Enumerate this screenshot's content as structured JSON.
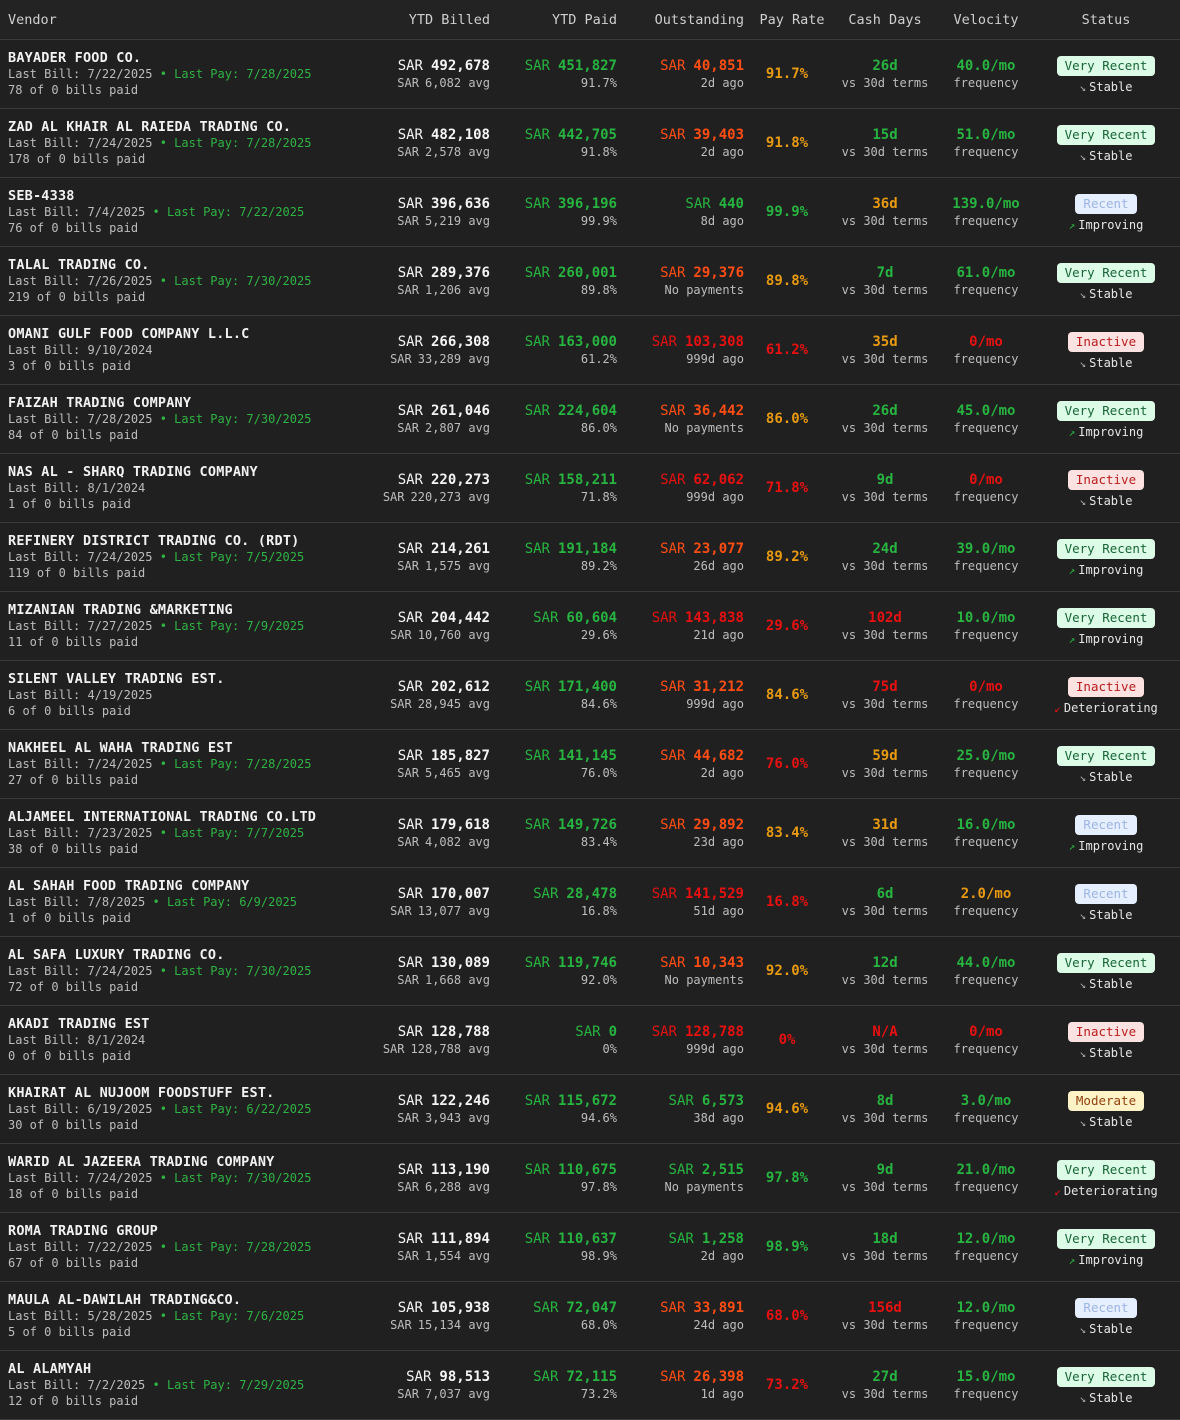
{
  "colors": {
    "green": "#27b440",
    "red": "#e81010",
    "orange": "#ff4d14",
    "amber": "#e89a10",
    "badge_very_recent_bg": "#dcfce7",
    "badge_very_recent_fg": "#166534",
    "badge_recent_bg": "#e6efff",
    "badge_recent_fg": "#9db5e6",
    "badge_inactive_bg": "#fde2e2",
    "badge_inactive_fg": "#b91c1c",
    "badge_moderate_bg": "#fef3c7",
    "badge_moderate_fg": "#92400e"
  },
  "headers": {
    "vendor": "Vendor",
    "ytd_billed": "YTD Billed",
    "ytd_paid": "YTD Paid",
    "outstanding": "Outstanding",
    "pay_rate": "Pay Rate",
    "cash_days": "Cash Days",
    "velocity": "Velocity",
    "status": "Status"
  },
  "rows": [
    {
      "name": "BAYADER FOOD CO.",
      "last_bill": "Last Bill: 7/22/2025",
      "last_pay": " • Last Pay: 7/28/2025",
      "bills": "78 of 0 bills paid",
      "billed": "492,678",
      "avg": "6,082 avg",
      "paid": "451,827",
      "paid_pct": "91.7%",
      "paid_color": "green",
      "out": "40,851",
      "out_color": "orange",
      "out_sub": "2d ago",
      "rate": "91.7%",
      "rate_color": "amber",
      "cash": "26d",
      "cash_color": "green",
      "cash_sub": "vs 30d terms",
      "vel": "40.0/mo",
      "vel_color": "green",
      "vel_sub": "frequency",
      "status": "Very Recent",
      "status_type": "very_recent",
      "trend": "Stable",
      "trend_icon": "↘"
    },
    {
      "name": "ZAD AL KHAIR AL RAIEDA TRADING CO.",
      "last_bill": "Last Bill: 7/24/2025",
      "last_pay": " • Last Pay: 7/28/2025",
      "bills": "178 of 0 bills paid",
      "billed": "482,108",
      "avg": "2,578 avg",
      "paid": "442,705",
      "paid_pct": "91.8%",
      "paid_color": "green",
      "out": "39,403",
      "out_color": "orange",
      "out_sub": "2d ago",
      "rate": "91.8%",
      "rate_color": "amber",
      "cash": "15d",
      "cash_color": "green",
      "cash_sub": "vs 30d terms",
      "vel": "51.0/mo",
      "vel_color": "green",
      "vel_sub": "frequency",
      "status": "Very Recent",
      "status_type": "very_recent",
      "trend": "Stable",
      "trend_icon": "↘"
    },
    {
      "name": "SEB-4338",
      "last_bill": "Last Bill: 7/4/2025",
      "last_pay": " • Last Pay: 7/22/2025",
      "bills": "76 of 0 bills paid",
      "billed": "396,636",
      "avg": "5,219 avg",
      "paid": "396,196",
      "paid_pct": "99.9%",
      "paid_color": "green",
      "out": "440",
      "out_color": "green",
      "out_sub": "8d ago",
      "rate": "99.9%",
      "rate_color": "green",
      "cash": "36d",
      "cash_color": "amber",
      "cash_sub": "vs 30d terms",
      "vel": "139.0/mo",
      "vel_color": "green",
      "vel_sub": "frequency",
      "status": "Recent",
      "status_type": "recent",
      "trend": "Improving",
      "trend_icon": "↗"
    },
    {
      "name": "TALAL TRADING CO.",
      "last_bill": "Last Bill: 7/26/2025",
      "last_pay": " • Last Pay: 7/30/2025",
      "bills": "219 of 0 bills paid",
      "billed": "289,376",
      "avg": "1,206 avg",
      "paid": "260,001",
      "paid_pct": "89.8%",
      "paid_color": "green",
      "out": "29,376",
      "out_color": "orange",
      "out_sub": "No payments",
      "rate": "89.8%",
      "rate_color": "amber",
      "cash": "7d",
      "cash_color": "green",
      "cash_sub": "vs 30d terms",
      "vel": "61.0/mo",
      "vel_color": "green",
      "vel_sub": "frequency",
      "status": "Very Recent",
      "status_type": "very_recent",
      "trend": "Stable",
      "trend_icon": "↘"
    },
    {
      "name": "OMANI GULF FOOD COMPANY L.L.C",
      "last_bill": "Last Bill: 9/10/2024",
      "last_pay": "",
      "bills": "3 of 0 bills paid",
      "billed": "266,308",
      "avg": "33,289 avg",
      "paid": "163,000",
      "paid_pct": "61.2%",
      "paid_color": "green",
      "out": "103,308",
      "out_color": "red",
      "out_sub": "999d ago",
      "rate": "61.2%",
      "rate_color": "red",
      "cash": "35d",
      "cash_color": "amber",
      "cash_sub": "vs 30d terms",
      "vel": "0/mo",
      "vel_color": "red",
      "vel_sub": "frequency",
      "status": "Inactive",
      "status_type": "inactive",
      "trend": "Stable",
      "trend_icon": "↘"
    },
    {
      "name": "FAIZAH TRADING COMPANY",
      "last_bill": "Last Bill: 7/28/2025",
      "last_pay": " • Last Pay: 7/30/2025",
      "bills": "84 of 0 bills paid",
      "billed": "261,046",
      "avg": "2,807 avg",
      "paid": "224,604",
      "paid_pct": "86.0%",
      "paid_color": "green",
      "out": "36,442",
      "out_color": "orange",
      "out_sub": "No payments",
      "rate": "86.0%",
      "rate_color": "amber",
      "cash": "26d",
      "cash_color": "green",
      "cash_sub": "vs 30d terms",
      "vel": "45.0/mo",
      "vel_color": "green",
      "vel_sub": "frequency",
      "status": "Very Recent",
      "status_type": "very_recent",
      "trend": "Improving",
      "trend_icon": "↗"
    },
    {
      "name": "NAS AL - SHARQ TRADING COMPANY",
      "last_bill": "Last Bill: 8/1/2024",
      "last_pay": "",
      "bills": "1 of 0 bills paid",
      "billed": "220,273",
      "avg": "220,273 avg",
      "paid": "158,211",
      "paid_pct": "71.8%",
      "paid_color": "green",
      "out": "62,062",
      "out_color": "red",
      "out_sub": "999d ago",
      "rate": "71.8%",
      "rate_color": "red",
      "cash": "9d",
      "cash_color": "green",
      "cash_sub": "vs 30d terms",
      "vel": "0/mo",
      "vel_color": "red",
      "vel_sub": "frequency",
      "status": "Inactive",
      "status_type": "inactive",
      "trend": "Stable",
      "trend_icon": "↘"
    },
    {
      "name": "REFINERY DISTRICT TRADING CO. (RDT)",
      "last_bill": "Last Bill: 7/24/2025",
      "last_pay": " • Last Pay: 7/5/2025",
      "bills": "119 of 0 bills paid",
      "billed": "214,261",
      "avg": "1,575 avg",
      "paid": "191,184",
      "paid_pct": "89.2%",
      "paid_color": "green",
      "out": "23,077",
      "out_color": "orange",
      "out_sub": "26d ago",
      "rate": "89.2%",
      "rate_color": "amber",
      "cash": "24d",
      "cash_color": "green",
      "cash_sub": "vs 30d terms",
      "vel": "39.0/mo",
      "vel_color": "green",
      "vel_sub": "frequency",
      "status": "Very Recent",
      "status_type": "very_recent",
      "trend": "Improving",
      "trend_icon": "↗"
    },
    {
      "name": "MIZANIAN TRADING &MARKETING",
      "last_bill": "Last Bill: 7/27/2025",
      "last_pay": " • Last Pay: 7/9/2025",
      "bills": "11 of 0 bills paid",
      "billed": "204,442",
      "avg": "10,760 avg",
      "paid": "60,604",
      "paid_pct": "29.6%",
      "paid_color": "green",
      "out": "143,838",
      "out_color": "red",
      "out_sub": "21d ago",
      "rate": "29.6%",
      "rate_color": "red",
      "cash": "102d",
      "cash_color": "red",
      "cash_sub": "vs 30d terms",
      "vel": "10.0/mo",
      "vel_color": "green",
      "vel_sub": "frequency",
      "status": "Very Recent",
      "status_type": "very_recent",
      "trend": "Improving",
      "trend_icon": "↗"
    },
    {
      "name": "SILENT VALLEY TRADING EST.",
      "last_bill": "Last Bill: 4/19/2025",
      "last_pay": "",
      "bills": "6 of 0 bills paid",
      "billed": "202,612",
      "avg": "28,945 avg",
      "paid": "171,400",
      "paid_pct": "84.6%",
      "paid_color": "green",
      "out": "31,212",
      "out_color": "orange",
      "out_sub": "999d ago",
      "rate": "84.6%",
      "rate_color": "amber",
      "cash": "75d",
      "cash_color": "red",
      "cash_sub": "vs 30d terms",
      "vel": "0/mo",
      "vel_color": "red",
      "vel_sub": "frequency",
      "status": "Inactive",
      "status_type": "inactive",
      "trend": "Deteriorating",
      "trend_icon": "↙"
    },
    {
      "name": "NAKHEEL AL WAHA TRADING EST",
      "last_bill": "Last Bill: 7/24/2025",
      "last_pay": " • Last Pay: 7/28/2025",
      "bills": "27 of 0 bills paid",
      "billed": "185,827",
      "avg": "5,465 avg",
      "paid": "141,145",
      "paid_pct": "76.0%",
      "paid_color": "green",
      "out": "44,682",
      "out_color": "orange",
      "out_sub": "2d ago",
      "rate": "76.0%",
      "rate_color": "red",
      "cash": "59d",
      "cash_color": "amber",
      "cash_sub": "vs 30d terms",
      "vel": "25.0/mo",
      "vel_color": "green",
      "vel_sub": "frequency",
      "status": "Very Recent",
      "status_type": "very_recent",
      "trend": "Stable",
      "trend_icon": "↘"
    },
    {
      "name": "ALJAMEEL INTERNATIONAL TRADING CO.LTD",
      "last_bill": "Last Bill: 7/23/2025",
      "last_pay": " • Last Pay: 7/7/2025",
      "bills": "38 of 0 bills paid",
      "billed": "179,618",
      "avg": "4,082 avg",
      "paid": "149,726",
      "paid_pct": "83.4%",
      "paid_color": "green",
      "out": "29,892",
      "out_color": "orange",
      "out_sub": "23d ago",
      "rate": "83.4%",
      "rate_color": "amber",
      "cash": "31d",
      "cash_color": "amber",
      "cash_sub": "vs 30d terms",
      "vel": "16.0/mo",
      "vel_color": "green",
      "vel_sub": "frequency",
      "status": "Recent",
      "status_type": "recent",
      "trend": "Improving",
      "trend_icon": "↗"
    },
    {
      "name": "AL SAHAH FOOD TRADING COMPANY",
      "last_bill": "Last Bill: 7/8/2025",
      "last_pay": " • Last Pay: 6/9/2025",
      "bills": "1 of 0 bills paid",
      "billed": "170,007",
      "avg": "13,077 avg",
      "paid": "28,478",
      "paid_pct": "16.8%",
      "paid_color": "green",
      "out": "141,529",
      "out_color": "red",
      "out_sub": "51d ago",
      "rate": "16.8%",
      "rate_color": "red",
      "cash": "6d",
      "cash_color": "green",
      "cash_sub": "vs 30d terms",
      "vel": "2.0/mo",
      "vel_color": "amber",
      "vel_sub": "frequency",
      "status": "Recent",
      "status_type": "recent",
      "trend": "Stable",
      "trend_icon": "↘"
    },
    {
      "name": "AL SAFA LUXURY TRADING CO.",
      "last_bill": "Last Bill: 7/24/2025",
      "last_pay": " • Last Pay: 7/30/2025",
      "bills": "72 of 0 bills paid",
      "billed": "130,089",
      "avg": "1,668 avg",
      "paid": "119,746",
      "paid_pct": "92.0%",
      "paid_color": "green",
      "out": "10,343",
      "out_color": "orange",
      "out_sub": "No payments",
      "rate": "92.0%",
      "rate_color": "amber",
      "cash": "12d",
      "cash_color": "green",
      "cash_sub": "vs 30d terms",
      "vel": "44.0/mo",
      "vel_color": "green",
      "vel_sub": "frequency",
      "status": "Very Recent",
      "status_type": "very_recent",
      "trend": "Stable",
      "trend_icon": "↘"
    },
    {
      "name": "AKADI TRADING EST",
      "last_bill": "Last Bill: 8/1/2024",
      "last_pay": "",
      "bills": "0 of 0 bills paid",
      "billed": "128,788",
      "avg": "128,788 avg",
      "paid": "0",
      "paid_pct": "0%",
      "paid_color": "green",
      "out": "128,788",
      "out_color": "red",
      "out_sub": "999d ago",
      "rate": "0%",
      "rate_color": "red",
      "cash": "N/A",
      "cash_color": "red",
      "cash_sub": "vs 30d terms",
      "vel": "0/mo",
      "vel_color": "red",
      "vel_sub": "frequency",
      "status": "Inactive",
      "status_type": "inactive",
      "trend": "Stable",
      "trend_icon": "↘"
    },
    {
      "name": "KHAIRAT AL NUJOOM FOODSTUFF EST.",
      "last_bill": "Last Bill: 6/19/2025",
      "last_pay": " • Last Pay: 6/22/2025",
      "bills": "30 of 0 bills paid",
      "billed": "122,246",
      "avg": "3,943 avg",
      "paid": "115,672",
      "paid_pct": "94.6%",
      "paid_color": "green",
      "out": "6,573",
      "out_color": "green",
      "out_sub": "38d ago",
      "rate": "94.6%",
      "rate_color": "amber",
      "cash": "8d",
      "cash_color": "green",
      "cash_sub": "vs 30d terms",
      "vel": "3.0/mo",
      "vel_color": "green",
      "vel_sub": "frequency",
      "status": "Moderate",
      "status_type": "moderate",
      "trend": "Stable",
      "trend_icon": "↘"
    },
    {
      "name": "WARID AL JAZEERA TRADING COMPANY",
      "last_bill": "Last Bill: 7/24/2025",
      "last_pay": " • Last Pay: 7/30/2025",
      "bills": "18 of 0 bills paid",
      "billed": "113,190",
      "avg": "6,288 avg",
      "paid": "110,675",
      "paid_pct": "97.8%",
      "paid_color": "green",
      "out": "2,515",
      "out_color": "green",
      "out_sub": "No payments",
      "rate": "97.8%",
      "rate_color": "green",
      "cash": "9d",
      "cash_color": "green",
      "cash_sub": "vs 30d terms",
      "vel": "21.0/mo",
      "vel_color": "green",
      "vel_sub": "frequency",
      "status": "Very Recent",
      "status_type": "very_recent",
      "trend": "Deteriorating",
      "trend_icon": "↙"
    },
    {
      "name": "ROMA TRADING GROUP",
      "last_bill": "Last Bill: 7/22/2025",
      "last_pay": " • Last Pay: 7/28/2025",
      "bills": "67 of 0 bills paid",
      "billed": "111,894",
      "avg": "1,554 avg",
      "paid": "110,637",
      "paid_pct": "98.9%",
      "paid_color": "green",
      "out": "1,258",
      "out_color": "green",
      "out_sub": "2d ago",
      "rate": "98.9%",
      "rate_color": "green",
      "cash": "18d",
      "cash_color": "green",
      "cash_sub": "vs 30d terms",
      "vel": "12.0/mo",
      "vel_color": "green",
      "vel_sub": "frequency",
      "status": "Very Recent",
      "status_type": "very_recent",
      "trend": "Improving",
      "trend_icon": "↗"
    },
    {
      "name": "MAULA AL-DAWILAH TRADING&CO.",
      "last_bill": "Last Bill: 5/28/2025",
      "last_pay": " • Last Pay: 7/6/2025",
      "bills": "5 of 0 bills paid",
      "billed": "105,938",
      "avg": "15,134 avg",
      "paid": "72,047",
      "paid_pct": "68.0%",
      "paid_color": "green",
      "out": "33,891",
      "out_color": "orange",
      "out_sub": "24d ago",
      "rate": "68.0%",
      "rate_color": "red",
      "cash": "156d",
      "cash_color": "red",
      "cash_sub": "vs 30d terms",
      "vel": "12.0/mo",
      "vel_color": "green",
      "vel_sub": "frequency",
      "status": "Recent",
      "status_type": "recent",
      "trend": "Stable",
      "trend_icon": "↘"
    },
    {
      "name": "AL ALAMYAH",
      "last_bill": "Last Bill: 7/2/2025",
      "last_pay": " • Last Pay: 7/29/2025",
      "bills": "12 of 0 bills paid",
      "billed": "98,513",
      "avg": "7,037 avg",
      "paid": "72,115",
      "paid_pct": "73.2%",
      "paid_color": "green",
      "out": "26,398",
      "out_color": "orange",
      "out_sub": "1d ago",
      "rate": "73.2%",
      "rate_color": "red",
      "cash": "27d",
      "cash_color": "green",
      "cash_sub": "vs 30d terms",
      "vel": "15.0/mo",
      "vel_color": "green",
      "vel_sub": "frequency",
      "status": "Very Recent",
      "status_type": "very_recent",
      "trend": "Stable",
      "trend_icon": "↘"
    }
  ],
  "currency": "SAR"
}
